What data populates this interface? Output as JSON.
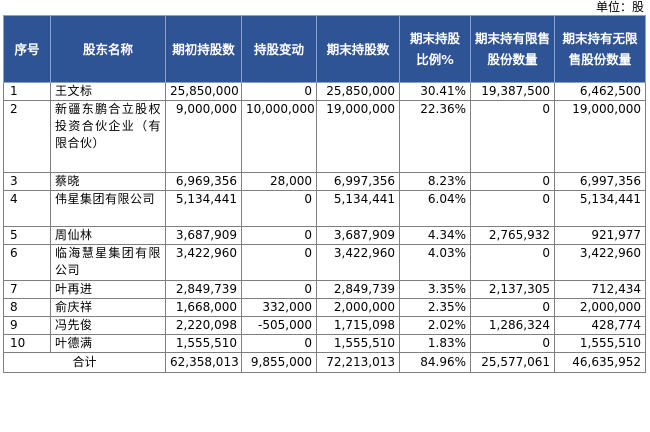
{
  "unit_label": "单位：股",
  "headers": [
    "序号",
    "股东名称",
    "期初持股数",
    "持股变动",
    "期末持股数",
    "期末持股比例%",
    "期末持有限售股份数量",
    "期末持有无限售股份数量"
  ],
  "rows": [
    {
      "no": "1",
      "name": "王文标",
      "start": "25,850,000",
      "change": "0",
      "end": "25,850,000",
      "ratio": "30.41%",
      "restricted": "19,387,500",
      "unrestricted": "6,462,500"
    },
    {
      "no": "2",
      "name": "新疆东鹏合立股权投资合伙企业（有限合伙）",
      "start": "9,000,000",
      "change": "10,000,000",
      "end": "19,000,000",
      "ratio": "22.36%",
      "restricted": "0",
      "unrestricted": "19,000,000"
    },
    {
      "no": "3",
      "name": "蔡晓",
      "start": "6,969,356",
      "change": "28,000",
      "end": "6,997,356",
      "ratio": "8.23%",
      "restricted": "0",
      "unrestricted": "6,997,356"
    },
    {
      "no": "4",
      "name": "伟星集团有限公司",
      "start": "5,134,441",
      "change": "0",
      "end": "5,134,441",
      "ratio": "6.04%",
      "restricted": "0",
      "unrestricted": "5,134,441"
    },
    {
      "no": "5",
      "name": "周仙林",
      "start": "3,687,909",
      "change": "0",
      "end": "3,687,909",
      "ratio": "4.34%",
      "restricted": "2,765,932",
      "unrestricted": "921,977"
    },
    {
      "no": "6",
      "name": "临海慧星集团有限公司",
      "start": "3,422,960",
      "change": "0",
      "end": "3,422,960",
      "ratio": "4.03%",
      "restricted": "0",
      "unrestricted": "3,422,960"
    },
    {
      "no": "7",
      "name": "叶再进",
      "start": "2,849,739",
      "change": "0",
      "end": "2,849,739",
      "ratio": "3.35%",
      "restricted": "2,137,305",
      "unrestricted": "712,434"
    },
    {
      "no": "8",
      "name": "俞庆祥",
      "start": "1,668,000",
      "change": "332,000",
      "end": "2,000,000",
      "ratio": "2.35%",
      "restricted": "0",
      "unrestricted": "2,000,000"
    },
    {
      "no": "9",
      "name": "冯先俊",
      "start": "2,220,098",
      "change": "-505,000",
      "end": "1,715,098",
      "ratio": "2.02%",
      "restricted": "1,286,324",
      "unrestricted": "428,774"
    },
    {
      "no": "10",
      "name": "叶德满",
      "start": "1,555,510",
      "change": "0",
      "end": "1,555,510",
      "ratio": "1.83%",
      "restricted": "0",
      "unrestricted": "1,555,510"
    }
  ],
  "total": {
    "label": "合计",
    "start": "62,358,013",
    "change": "9,855,000",
    "end": "72,213,013",
    "ratio": "84.96%",
    "restricted": "25,577,061",
    "unrestricted": "46,635,952"
  }
}
